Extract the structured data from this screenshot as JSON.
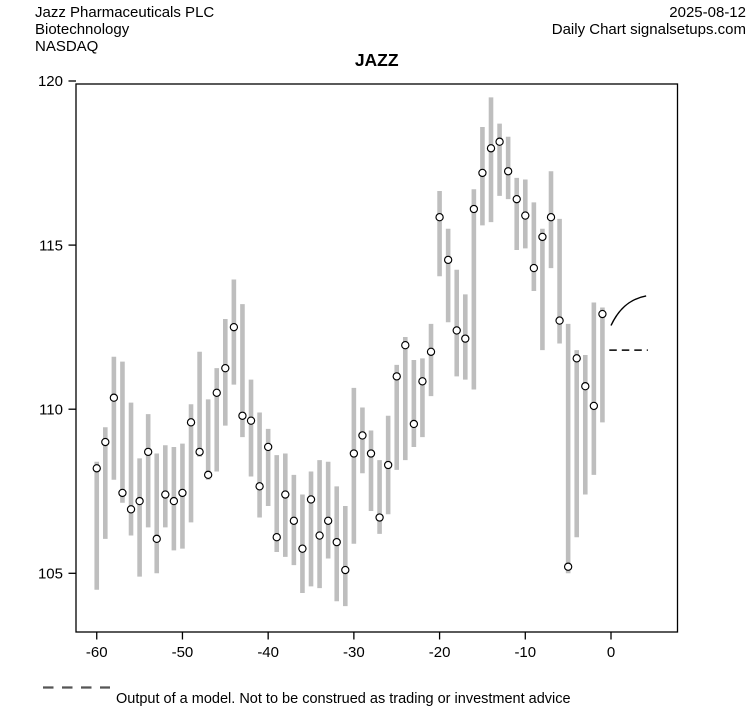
{
  "header": {
    "company": "Jazz Pharmaceuticals PLC",
    "sector": "Biotechnology",
    "exchange": "NASDAQ",
    "date": "2025-08-12",
    "source_line": "Daily Chart signalsetups.com"
  },
  "title": "JAZZ",
  "footer": {
    "disclaimer": "Output of a model. Not to be construed as trading or investment advice"
  },
  "chart_data": {
    "type": "hilo-range-bars-with-open-circle-points",
    "title": "JAZZ",
    "xlabel": "",
    "ylabel": "",
    "grid": false,
    "x_ticks": [
      -60,
      -50,
      -40,
      -30,
      -20,
      -10,
      0
    ],
    "y_ticks": [
      105,
      110,
      115,
      120
    ],
    "xlim": [
      -62.5,
      7.8
    ],
    "ylim": [
      103.2,
      119.9
    ],
    "days": [
      -60,
      -59,
      -58,
      -57,
      -56,
      -55,
      -54,
      -53,
      -52,
      -51,
      -50,
      -49,
      -48,
      -47,
      -46,
      -45,
      -44,
      -43,
      -42,
      -41,
      -40,
      -39,
      -38,
      -37,
      -36,
      -35,
      -34,
      -33,
      -32,
      -31,
      -30,
      -29,
      -28,
      -27,
      -26,
      -25,
      -24,
      -23,
      -22,
      -21,
      -20,
      -19,
      -18,
      -17,
      -16,
      -15,
      -14,
      -13,
      -12,
      -11,
      -10,
      -9,
      -8,
      -7,
      -6,
      -5,
      -4,
      -3,
      -2,
      -1
    ],
    "series": [
      {
        "name": "point",
        "marker": "open-circle",
        "values": [
          108.2,
          109.0,
          110.35,
          107.45,
          106.95,
          107.2,
          108.7,
          106.05,
          107.4,
          107.2,
          107.45,
          109.6,
          108.7,
          108.0,
          110.5,
          111.25,
          112.5,
          109.8,
          109.65,
          107.65,
          108.85,
          106.1,
          107.4,
          106.6,
          105.75,
          107.25,
          106.15,
          106.6,
          105.95,
          105.1,
          108.65,
          109.2,
          108.65,
          106.7,
          108.3,
          111.0,
          111.95,
          109.55,
          110.85,
          111.75,
          115.85,
          114.55,
          112.4,
          112.15,
          116.1,
          117.2,
          117.95,
          118.15,
          117.25,
          116.4,
          115.9,
          114.3,
          115.25,
          115.85,
          112.7,
          105.2,
          111.55,
          110.7,
          110.1,
          112.9
        ]
      },
      {
        "name": "high",
        "values": [
          108.4,
          109.45,
          111.6,
          111.45,
          110.2,
          108.5,
          109.85,
          108.65,
          108.9,
          108.85,
          108.95,
          110.15,
          111.75,
          110.3,
          111.25,
          112.75,
          113.95,
          113.2,
          110.9,
          109.9,
          109.4,
          108.6,
          108.65,
          108.0,
          107.4,
          108.1,
          108.45,
          108.4,
          107.65,
          107.05,
          110.65,
          110.05,
          109.35,
          108.45,
          109.8,
          111.35,
          112.2,
          111.5,
          111.55,
          112.6,
          116.65,
          115.5,
          114.25,
          113.5,
          116.7,
          118.6,
          119.5,
          118.7,
          118.3,
          117.05,
          117.0,
          116.3,
          115.5,
          117.25,
          115.8,
          112.6,
          111.8,
          111.65,
          113.25,
          113.1
        ]
      },
      {
        "name": "low",
        "values": [
          104.5,
          106.05,
          107.85,
          107.15,
          106.15,
          104.9,
          106.4,
          105.0,
          106.4,
          105.7,
          105.75,
          106.55,
          108.55,
          107.85,
          108.1,
          109.5,
          110.75,
          109.15,
          107.95,
          106.7,
          107.05,
          105.65,
          105.5,
          105.25,
          104.4,
          104.6,
          104.55,
          105.45,
          104.15,
          104.0,
          105.9,
          108.05,
          106.9,
          106.2,
          106.8,
          108.15,
          108.45,
          108.85,
          109.15,
          110.4,
          114.05,
          112.65,
          111.0,
          110.9,
          110.6,
          115.6,
          115.7,
          116.5,
          116.4,
          114.85,
          114.9,
          113.6,
          111.8,
          114.3,
          112.0,
          105.0,
          106.1,
          107.4,
          108.0,
          109.6
        ]
      }
    ],
    "forecast": {
      "solid_curve": {
        "from_day": 0,
        "from_price": 112.55,
        "to_day": 4.1,
        "to_price": 113.45,
        "shape": "rising, concave (flattens out)"
      },
      "dashed_level": {
        "price": 111.8,
        "from_day": -0.2,
        "to_day": 4.3
      }
    },
    "styles": {
      "bar_color": "#bebebe",
      "point_fill": "#ffffff",
      "point_stroke": "#000000",
      "axis_color": "#000000",
      "background": "#ffffff",
      "legend_dash_color": "#555555"
    }
  }
}
